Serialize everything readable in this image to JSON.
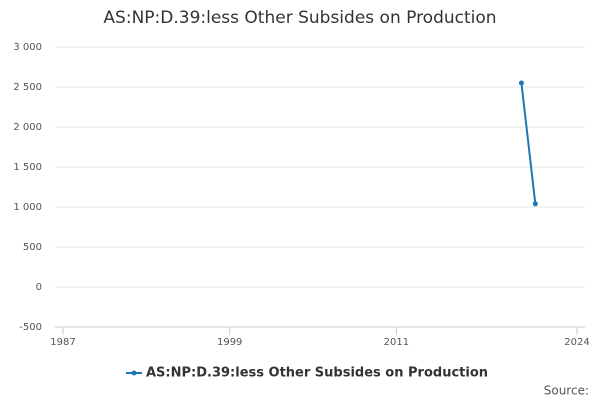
{
  "chart_data": {
    "type": "line",
    "title": "AS:NP:D.39:less Other Subsides on Production",
    "x": [
      2020,
      2021
    ],
    "series": [
      {
        "name": "AS:NP:D.39:less Other Subsides on Production",
        "color": "#1f77b4",
        "values": [
          2550,
          1040
        ]
      }
    ],
    "xlim": [
      1987,
      2024
    ],
    "xticks": [
      1987,
      1999,
      2011,
      2024
    ],
    "ylim": [
      -500,
      3000
    ],
    "yticks": [
      {
        "value": -500,
        "label": "-500"
      },
      0,
      500,
      {
        "value": 1000,
        "label": "1 000"
      },
      {
        "value": 1500,
        "label": "1 500"
      },
      {
        "value": 2000,
        "label": "2 000"
      },
      {
        "value": 2500,
        "label": "2 500"
      },
      {
        "value": 3000,
        "label": "3 000"
      }
    ],
    "grid": true,
    "legend": "bottom",
    "source": "Source:"
  }
}
